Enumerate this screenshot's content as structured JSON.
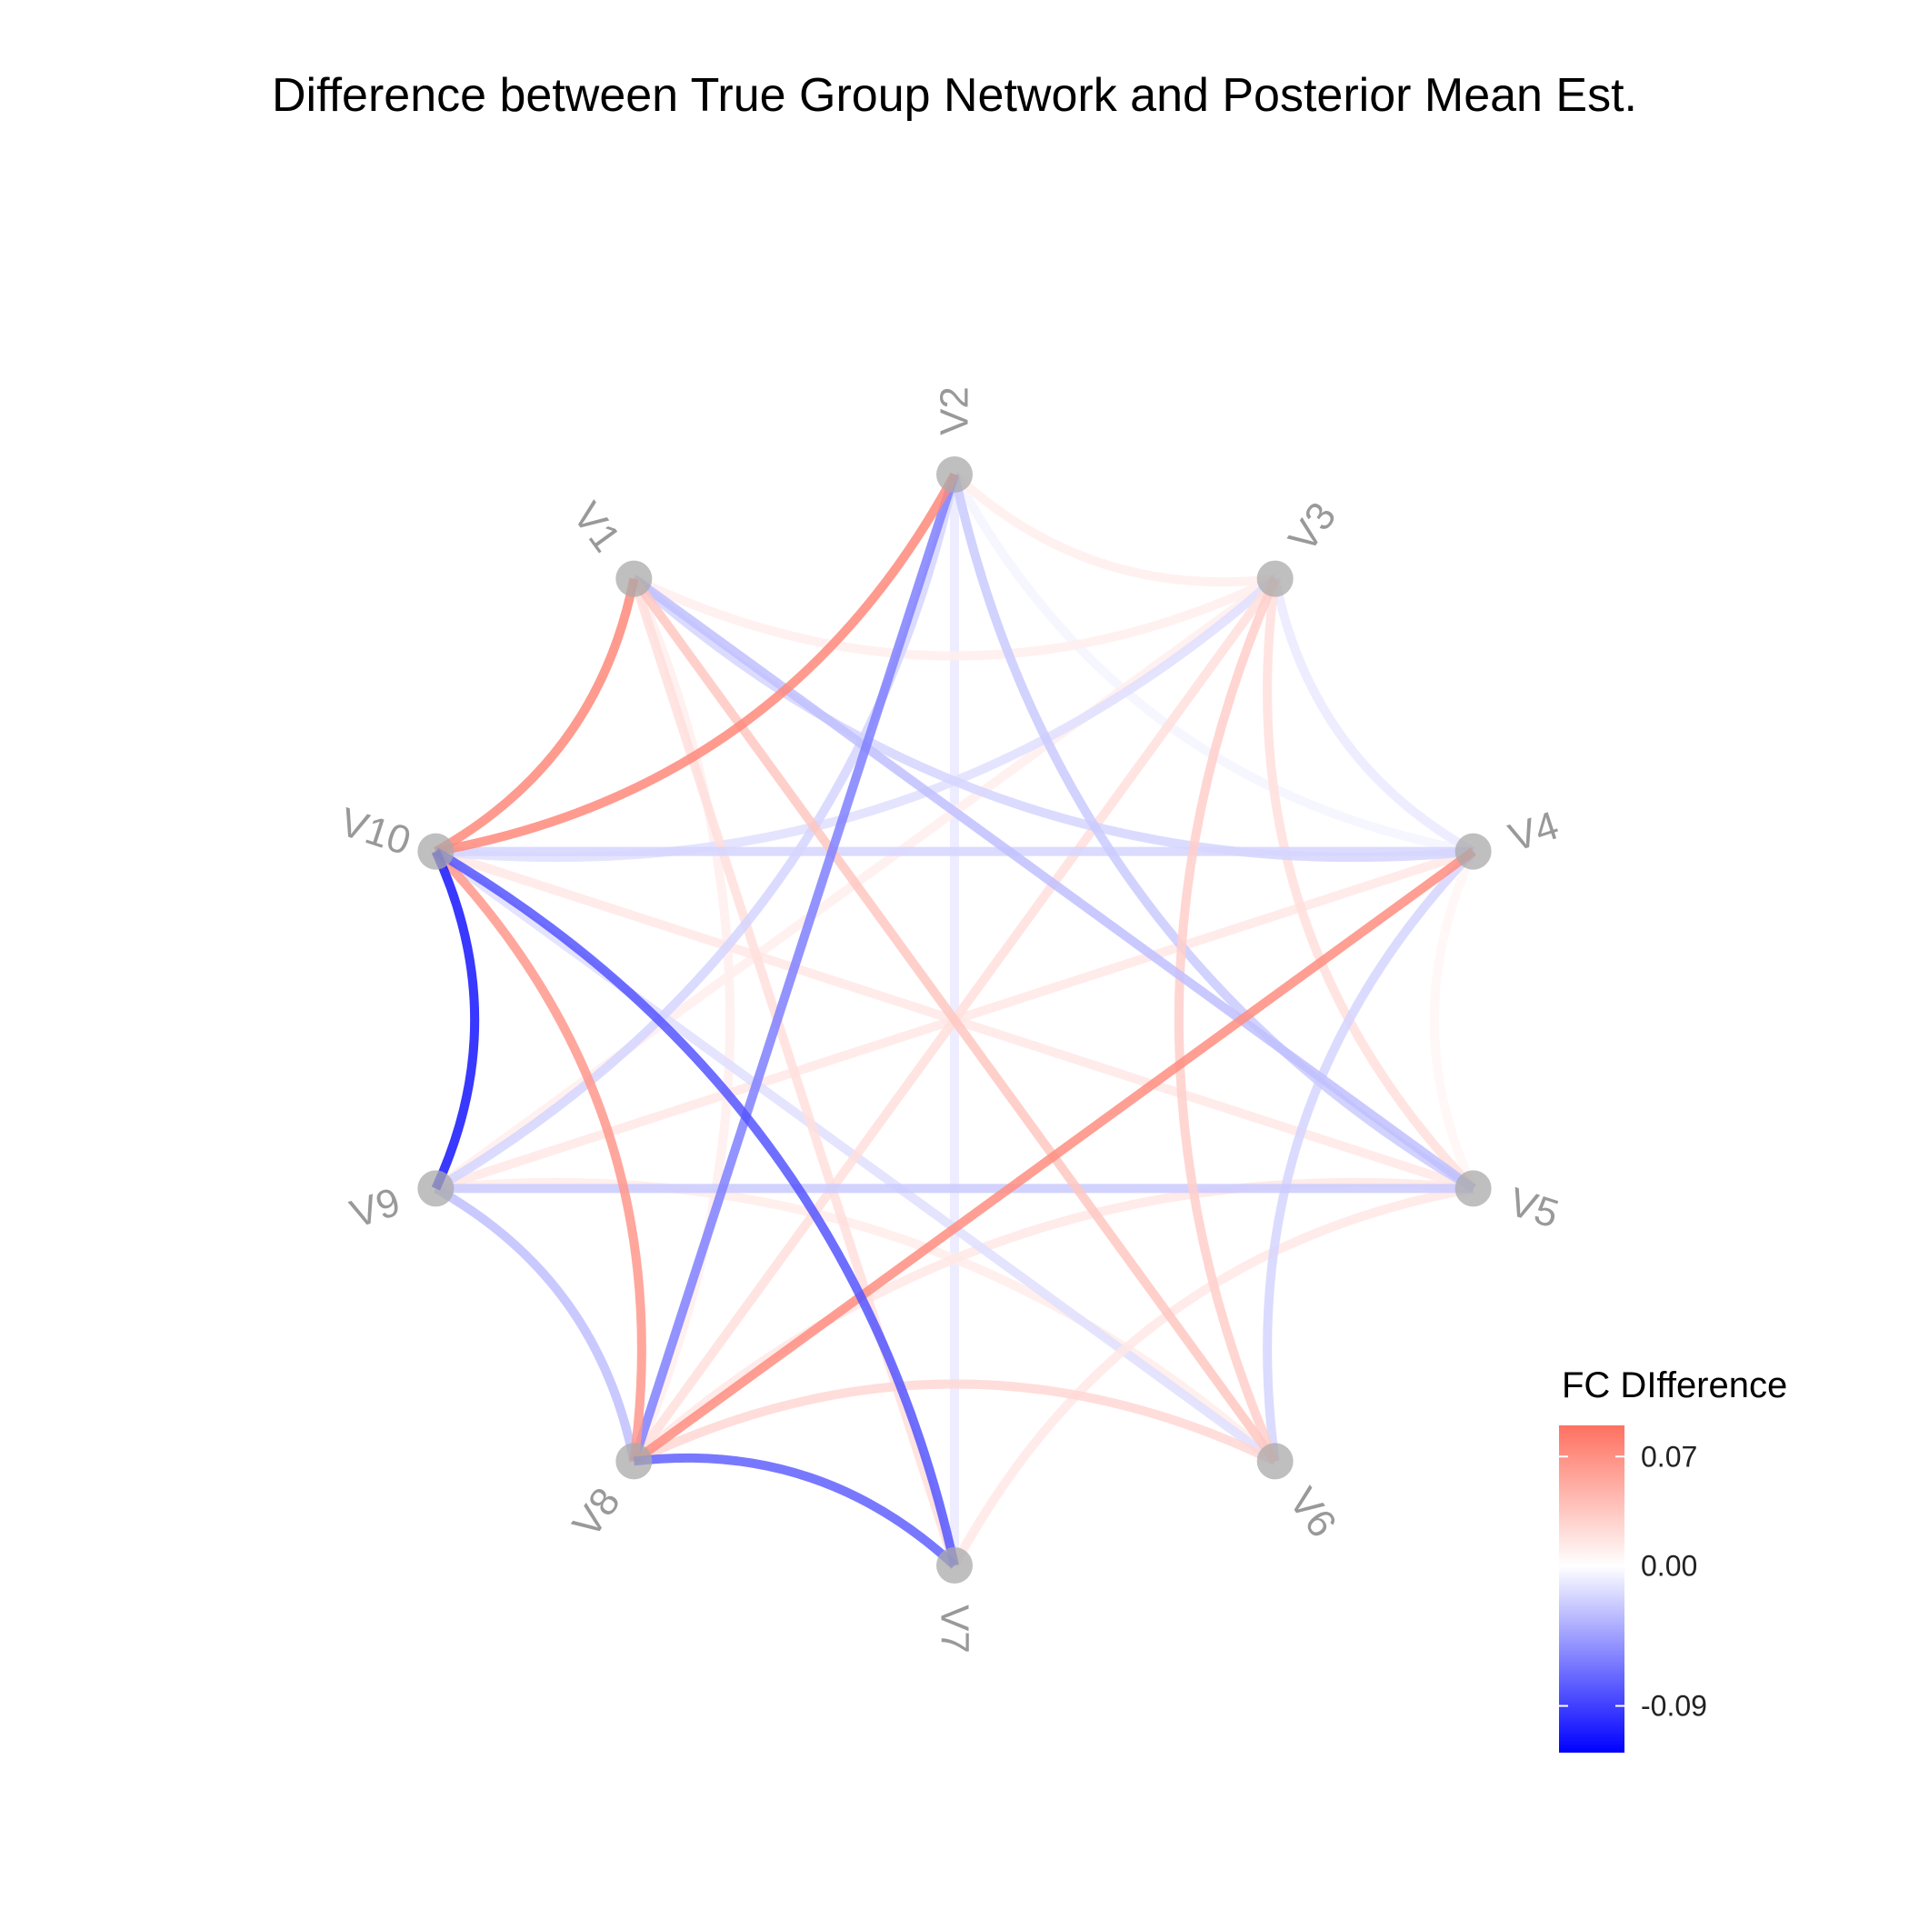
{
  "title": "Difference between True Group Network and Posterior Mean Est.",
  "legend": {
    "title": "FC DIfference",
    "ticks": [
      {
        "value": 0.07,
        "label": "0.07"
      },
      {
        "value": 0.0,
        "label": "0.00"
      },
      {
        "value": -0.09,
        "label": "-0.09"
      }
    ],
    "range": [
      -0.12,
      0.09
    ],
    "colors": {
      "low": "#0000ff",
      "mid": "#ffffff",
      "high": "#ff7060"
    }
  },
  "chart_data": {
    "type": "network",
    "nodes": [
      "V1",
      "V2",
      "V3",
      "V4",
      "V5",
      "V6",
      "V7",
      "V8",
      "V9",
      "V10"
    ],
    "node_color": "#aaaaaa",
    "edges": [
      {
        "from": "V1",
        "to": "V10",
        "value": 0.075
      },
      {
        "from": "V2",
        "to": "V10",
        "value": 0.075
      },
      {
        "from": "V4",
        "to": "V8",
        "value": 0.072
      },
      {
        "from": "V10",
        "to": "V8",
        "value": 0.065
      },
      {
        "from": "V10",
        "to": "V9",
        "value": -0.11
      },
      {
        "from": "V10",
        "to": "V7",
        "value": -0.08
      },
      {
        "from": "V2",
        "to": "V8",
        "value": -0.06
      },
      {
        "from": "V7",
        "to": "V8",
        "value": -0.075
      },
      {
        "from": "V1",
        "to": "V6",
        "value": 0.035
      },
      {
        "from": "V3",
        "to": "V6",
        "value": 0.03
      },
      {
        "from": "V1",
        "to": "V7",
        "value": 0.02
      },
      {
        "from": "V5",
        "to": "V10",
        "value": 0.015
      },
      {
        "from": "V4",
        "to": "V9",
        "value": 0.015
      },
      {
        "from": "V8",
        "to": "V5",
        "value": 0.015
      },
      {
        "from": "V8",
        "to": "V6",
        "value": 0.025
      },
      {
        "from": "V8",
        "to": "V3",
        "value": 0.02
      },
      {
        "from": "V3",
        "to": "V5",
        "value": 0.02
      },
      {
        "from": "V1",
        "to": "V5",
        "value": -0.03
      },
      {
        "from": "V2",
        "to": "V9",
        "value": -0.02
      },
      {
        "from": "V4",
        "to": "V10",
        "value": -0.02
      },
      {
        "from": "V1",
        "to": "V4",
        "value": -0.02
      },
      {
        "from": "V3",
        "to": "V10",
        "value": -0.015
      },
      {
        "from": "V2",
        "to": "V5",
        "value": -0.025
      },
      {
        "from": "V4",
        "to": "V6",
        "value": -0.02
      },
      {
        "from": "V10",
        "to": "V6",
        "value": -0.015
      },
      {
        "from": "V9",
        "to": "V5",
        "value": -0.025
      },
      {
        "from": "V9",
        "to": "V8",
        "value": -0.03
      },
      {
        "from": "V2",
        "to": "V7",
        "value": -0.01
      },
      {
        "from": "V3",
        "to": "V2",
        "value": 0.01
      },
      {
        "from": "V3",
        "to": "V4",
        "value": -0.01
      },
      {
        "from": "V5",
        "to": "V7",
        "value": 0.015
      },
      {
        "from": "V9",
        "to": "V6",
        "value": 0.012
      },
      {
        "from": "V1",
        "to": "V3",
        "value": 0.01
      },
      {
        "from": "V2",
        "to": "V4",
        "value": -0.005
      },
      {
        "from": "V9",
        "to": "V3",
        "value": 0.01
      },
      {
        "from": "V1",
        "to": "V8",
        "value": 0.01
      },
      {
        "from": "V4",
        "to": "V5",
        "value": 0.005
      }
    ]
  }
}
